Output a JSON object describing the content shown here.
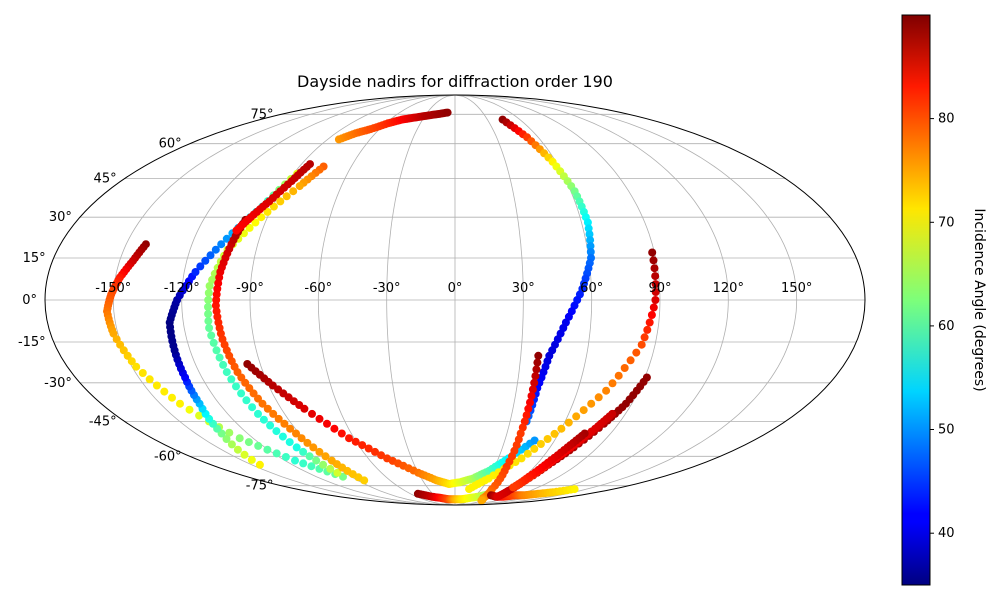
{
  "chart_data": {
    "type": "scatter",
    "projection": "mollweide",
    "title": "Dayside nadirs for diffraction order 190",
    "grid": true,
    "lon_ticks": [
      -150,
      -120,
      -90,
      -60,
      -30,
      0,
      30,
      60,
      90,
      120,
      150
    ],
    "lon_tick_labels": [
      "-150°",
      "-120°",
      "-90°",
      "-60°",
      "-30°",
      "0°",
      "30°",
      "60°",
      "90°",
      "120°",
      "150°"
    ],
    "lat_ticks": [
      -75,
      -60,
      -45,
      -30,
      -15,
      0,
      15,
      30,
      45,
      60,
      75
    ],
    "lat_tick_labels": [
      "-75°",
      "-60°",
      "-45°",
      "-30°",
      "-15°",
      "0°",
      "15°",
      "30°",
      "45°",
      "60°",
      "75°"
    ],
    "colorbar": {
      "label": "Incidence Angle (degrees)",
      "colormap": "jet",
      "range": [
        35,
        90
      ],
      "ticks": [
        40,
        50,
        60,
        70,
        80
      ],
      "tick_labels": [
        "40",
        "50",
        "60",
        "70",
        "80"
      ]
    },
    "series": [
      {
        "lon": [
          -141,
          -144,
          -148,
          -151,
          -153,
          -152,
          -148,
          -140,
          -128,
          -113,
          -97
        ],
        "lat": [
          20,
          14,
          8,
          2,
          -4,
          -12,
          -24,
          -38,
          -52,
          -62,
          -70
        ],
        "incidence": [
          89,
          86,
          82,
          79,
          77,
          74,
          71,
          70,
          63,
          58,
          62
        ]
      },
      {
        "lon": [
          -144,
          -135,
          -130,
          -128,
          -127,
          -126,
          -122,
          -115,
          -105,
          -95,
          -88
        ],
        "lat": [
          -64,
          -50,
          -38,
          -28,
          -18,
          -8,
          0,
          10,
          22,
          34,
          47
        ],
        "incidence": [
          70,
          62,
          52,
          42,
          36,
          35,
          37,
          44,
          50,
          57,
          68
        ]
      },
      {
        "lon": [
          -76,
          -82,
          -93,
          -103,
          -108,
          -109,
          -107,
          -104,
          -100,
          -96
        ],
        "lat": [
          50,
          42,
          30,
          18,
          5,
          -10,
          -26,
          -42,
          -56,
          -68
        ],
        "incidence": [
          78,
          74,
          70,
          67,
          64,
          61,
          59,
          58,
          57,
          67
        ]
      },
      {
        "lon": [
          -84,
          -87,
          -92,
          -98,
          -102,
          -104,
          -105,
          -104,
          -102,
          -100
        ],
        "lat": [
          -72,
          -62,
          -50,
          -38,
          -26,
          -14,
          -2,
          10,
          20,
          29
        ],
        "incidence": [
          72,
          74,
          76,
          77,
          78,
          80,
          82,
          84,
          86,
          89
        ]
      },
      {
        "lon": [
          -85,
          -88,
          -93,
          -98,
          -102
        ],
        "lat": [
          51,
          44,
          36,
          30,
          25
        ],
        "incidence": [
          87,
          86,
          85,
          84,
          83
        ]
      },
      {
        "lon": [
          -82,
          -75,
          -67,
          -58,
          -49,
          -40,
          -30,
          -19,
          -8
        ],
        "lat": [
          62,
          65,
          67,
          70,
          72,
          73,
          74,
          75,
          76
        ],
        "incidence": [
          75,
          77,
          79,
          81,
          83,
          85,
          87,
          88,
          89
        ]
      },
      {
        "lon": [
          -96,
          -88,
          -78,
          -63,
          -47,
          -30,
          -17,
          -6,
          5,
          16,
          27,
          37,
          48
        ],
        "lat": [
          -23,
          -31,
          -40,
          -52,
          -61,
          -68,
          -72,
          -74,
          -73,
          -71,
          -67,
          -61,
          -53
        ],
        "incidence": [
          89,
          87,
          85,
          82,
          80,
          77,
          74,
          71,
          68,
          65,
          60,
          55,
          50
        ]
      },
      {
        "lon": [
          -50,
          -36,
          -23,
          -12,
          0,
          12,
          24,
          36,
          48
        ],
        "lat": [
          -80,
          -82,
          -83,
          -84,
          -84,
          -84,
          -83,
          -82,
          -80
        ],
        "incidence": [
          89,
          86,
          82,
          79,
          74,
          71,
          69,
          67,
          63
        ]
      },
      {
        "lon": [
          44,
          52,
          58,
          62,
          63,
          61,
          56,
          49,
          43,
          40,
          39
        ],
        "lat": [
          72,
          63,
          52,
          40,
          28,
          15,
          4,
          -8,
          -20,
          -32,
          -45
        ],
        "incidence": [
          89,
          80,
          70,
          62,
          55,
          48,
          44,
          41,
          40,
          42,
          48
        ]
      },
      {
        "lon": [
          16,
          30,
          46,
          60,
          74,
          84,
          88,
          89
        ],
        "lat": [
          -77,
          -71,
          -61,
          -48,
          -33,
          -16,
          0,
          17
        ],
        "incidence": [
          70,
          70,
          71,
          73,
          76,
          79,
          85,
          89
        ]
      },
      {
        "lon": [
          38,
          38,
          38,
          39,
          42,
          48,
          56
        ],
        "lat": [
          -20,
          -35,
          -50,
          -65,
          -77,
          -83,
          -85
        ],
        "incidence": [
          89,
          84,
          80,
          80,
          78,
          76,
          74
        ]
      },
      {
        "lon": [
          52,
          64,
          76,
          88,
          100,
          112,
          124,
          136
        ],
        "lat": [
          -81,
          -82,
          -82,
          -81,
          -81,
          -80,
          -79,
          -77
        ],
        "incidence": [
          89,
          86,
          82,
          79,
          76,
          74,
          72,
          70
        ]
      },
      {
        "lon": [
          91,
          87,
          82,
          75,
          69,
          65,
          64,
          66
        ],
        "lat": [
          -28,
          -38,
          -46,
          -56,
          -64,
          -72,
          -78,
          -82
        ],
        "incidence": [
          89,
          89,
          88,
          88,
          87,
          86,
          86,
          85
        ]
      },
      {
        "lon": [
          83,
          79,
          74,
          69,
          66,
          64
        ],
        "lat": [
          -42,
          -48,
          -55,
          -62,
          -68,
          -75
        ],
        "incidence": [
          86,
          85,
          84,
          83,
          81,
          79
        ]
      },
      {
        "lon": [
          75,
          71,
          67,
          64,
          63
        ],
        "lat": [
          -50,
          -56,
          -63,
          -70,
          -76
        ],
        "incidence": [
          88,
          86,
          84,
          82,
          80
        ]
      }
    ]
  }
}
